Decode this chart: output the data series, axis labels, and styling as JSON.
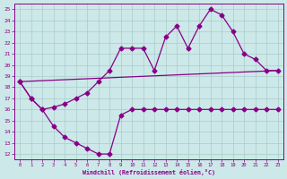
{
  "bg_color": "#cce8e8",
  "grid_color": "#aacccc",
  "line_color": "#880088",
  "marker": "D",
  "marker_size": 2.5,
  "linewidth": 0.9,
  "xlabel": "Windchill (Refroidissement éolien,°C)",
  "xlim": [
    -0.5,
    23.5
  ],
  "ylim": [
    11.5,
    25.5
  ],
  "xticks": [
    0,
    1,
    2,
    3,
    4,
    5,
    6,
    7,
    8,
    9,
    10,
    11,
    12,
    13,
    14,
    15,
    16,
    17,
    18,
    19,
    20,
    21,
    22,
    23
  ],
  "yticks": [
    12,
    13,
    14,
    15,
    16,
    17,
    18,
    19,
    20,
    21,
    22,
    23,
    24,
    25
  ],
  "line1_x": [
    0,
    1,
    2,
    3,
    4,
    5,
    6,
    7,
    8,
    9,
    10,
    11,
    12,
    13,
    14,
    15,
    16,
    17,
    18,
    19,
    20,
    21,
    22,
    23
  ],
  "line1_y": [
    18.5,
    17.0,
    16.0,
    16.2,
    16.5,
    17.0,
    17.5,
    18.5,
    19.5,
    21.5,
    21.5,
    21.5,
    19.5,
    22.5,
    23.5,
    21.5,
    23.5,
    25.0,
    24.5,
    23.0,
    21.0,
    20.5,
    19.5,
    19.5
  ],
  "line2_x": [
    0,
    1,
    2,
    3,
    4,
    5,
    6,
    7,
    8,
    9,
    10,
    11,
    12,
    13,
    14,
    15,
    16,
    17,
    18,
    19,
    20,
    21,
    22,
    23
  ],
  "line2_y": [
    18.5,
    17.0,
    16.0,
    14.5,
    13.5,
    13.0,
    12.5,
    12.0,
    12.0,
    15.5,
    16.0,
    16.0,
    16.0,
    16.0,
    16.0,
    16.0,
    16.0,
    16.0,
    16.0,
    16.0,
    16.0,
    16.0,
    16.0,
    16.0
  ],
  "line3_x": [
    0,
    23
  ],
  "line3_y": [
    18.5,
    19.5
  ]
}
